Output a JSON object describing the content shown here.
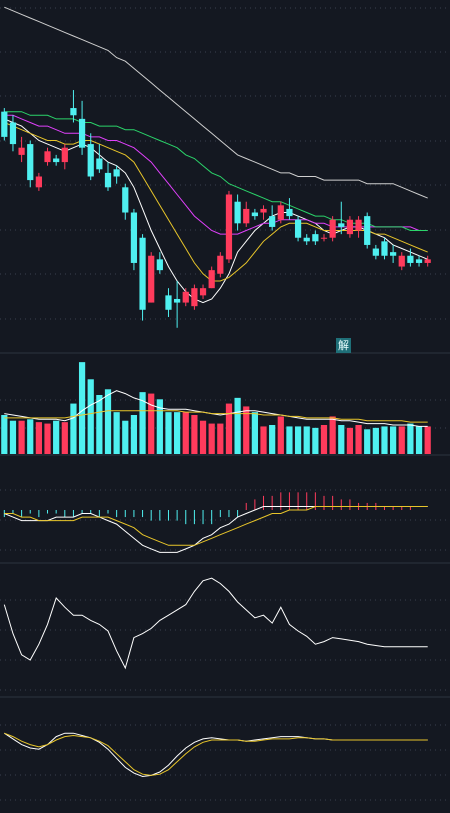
{
  "badge": {
    "label": "解"
  },
  "colors": {
    "background": "#141821",
    "up": "#ff3b5c",
    "down": "#4ff0f0",
    "grid": "#3a4150",
    "divider": "#2c3340",
    "ma_white": "#ffffff",
    "ma_yellow": "#e8c52a",
    "ma_magenta": "#e040fb",
    "ma_green": "#2bd46a",
    "ma_gray": "#cfcfcf"
  },
  "chart_data": {
    "type": "candlestick",
    "title": "",
    "panels": [
      {
        "name": "price",
        "candles": [
          {
            "o": 55,
            "h": 56,
            "l": 47,
            "c": 48
          },
          {
            "o": 52,
            "h": 54,
            "l": 44,
            "c": 46
          },
          {
            "o": 43,
            "h": 48,
            "l": 41,
            "c": 45
          },
          {
            "o": 46,
            "h": 47,
            "l": 34,
            "c": 36
          },
          {
            "o": 34,
            "h": 38,
            "l": 33,
            "c": 37
          },
          {
            "o": 41,
            "h": 45,
            "l": 40,
            "c": 44
          },
          {
            "o": 42,
            "h": 43,
            "l": 40,
            "c": 41
          },
          {
            "o": 41,
            "h": 46,
            "l": 39,
            "c": 45
          },
          {
            "o": 56,
            "h": 61,
            "l": 52,
            "c": 54
          },
          {
            "o": 53,
            "h": 58,
            "l": 43,
            "c": 45
          },
          {
            "o": 46,
            "h": 49,
            "l": 36,
            "c": 37
          },
          {
            "o": 42,
            "h": 46,
            "l": 38,
            "c": 39
          },
          {
            "o": 38,
            "h": 41,
            "l": 33,
            "c": 34
          },
          {
            "o": 39,
            "h": 40,
            "l": 35,
            "c": 37
          },
          {
            "o": 34,
            "h": 35,
            "l": 25,
            "c": 27
          },
          {
            "o": 27,
            "h": 28,
            "l": 11,
            "c": 13
          },
          {
            "o": 20,
            "h": 21,
            "l": -3,
            "c": 0
          },
          {
            "o": 2,
            "h": 16,
            "l": 2,
            "c": 15
          },
          {
            "o": 14,
            "h": 16,
            "l": 10,
            "c": 11
          },
          {
            "o": 4,
            "h": 6,
            "l": -2,
            "c": 0
          },
          {
            "o": 3,
            "h": 8,
            "l": -5,
            "c": 2
          },
          {
            "o": 2,
            "h": 6,
            "l": 1,
            "c": 5
          },
          {
            "o": 1,
            "h": 7,
            "l": 0,
            "c": 6
          },
          {
            "o": 4,
            "h": 7,
            "l": 3,
            "c": 6
          },
          {
            "o": 6,
            "h": 12,
            "l": 6,
            "c": 11
          },
          {
            "o": 10,
            "h": 16,
            "l": 9,
            "c": 15
          },
          {
            "o": 14,
            "h": 33,
            "l": 13,
            "c": 32
          },
          {
            "o": 30,
            "h": 32,
            "l": 22,
            "c": 24
          },
          {
            "o": 24,
            "h": 30,
            "l": 23,
            "c": 28
          },
          {
            "o": 27,
            "h": 28,
            "l": 25,
            "c": 26
          },
          {
            "o": 27,
            "h": 29,
            "l": 25,
            "c": 28
          },
          {
            "o": 26,
            "h": 29,
            "l": 22,
            "c": 23
          },
          {
            "o": 25,
            "h": 30,
            "l": 24,
            "c": 29
          },
          {
            "o": 28,
            "h": 31,
            "l": 25,
            "c": 26
          },
          {
            "o": 25,
            "h": 26,
            "l": 19,
            "c": 20
          },
          {
            "o": 20,
            "h": 21,
            "l": 18,
            "c": 19
          },
          {
            "o": 21,
            "h": 22,
            "l": 18,
            "c": 19
          },
          {
            "o": 20,
            "h": 21,
            "l": 19,
            "c": 20
          },
          {
            "o": 20,
            "h": 26,
            "l": 19,
            "c": 25
          },
          {
            "o": 24,
            "h": 30,
            "l": 21,
            "c": 23
          },
          {
            "o": 21,
            "h": 26,
            "l": 20,
            "c": 25
          },
          {
            "o": 22,
            "h": 26,
            "l": 20,
            "c": 25
          },
          {
            "o": 26,
            "h": 27,
            "l": 17,
            "c": 18
          },
          {
            "o": 17,
            "h": 18,
            "l": 14,
            "c": 15
          },
          {
            "o": 19,
            "h": 20,
            "l": 14,
            "c": 15
          },
          {
            "o": 16,
            "h": 18,
            "l": 13,
            "c": 15
          },
          {
            "o": 12,
            "h": 16,
            "l": 11,
            "c": 15
          },
          {
            "o": 15,
            "h": 17,
            "l": 12,
            "c": 13
          },
          {
            "o": 14,
            "h": 15,
            "l": 12,
            "c": 13
          },
          {
            "o": 13,
            "h": 15,
            "l": 12,
            "c": 14
          }
        ],
        "ylim": [
          -12,
          86
        ],
        "ma_lines": [
          {
            "color": "ma_white",
            "values": [
              53,
              52,
              51,
              49,
              47,
              46,
              45,
              44,
              45,
              46,
              45,
              43,
              41,
              40,
              38,
              34,
              28,
              22,
              17,
              12,
              8,
              5,
              3,
              2,
              3,
              6,
              10,
              16,
              19,
              22,
              24,
              26,
              27,
              27,
              26,
              25,
              24,
              22,
              21,
              22,
              23,
              23,
              22,
              21,
              20,
              18,
              17,
              16,
              15,
              14
            ]
          },
          {
            "color": "ma_yellow",
            "values": [
              52,
              51,
              50,
              49,
              48,
              47,
              47,
              46,
              46,
              47,
              47,
              46,
              45,
              44,
              43,
              41,
              37,
              33,
              29,
              25,
              21,
              17,
              13,
              10,
              8,
              8,
              9,
              11,
              13,
              16,
              19,
              21,
              23,
              24,
              24,
              24,
              23,
              22,
              22,
              22,
              22,
              22,
              22,
              21,
              21,
              20,
              19,
              18,
              17,
              16
            ]
          },
          {
            "color": "ma_magenta",
            "values": [
              54,
              54,
              53,
              52,
              51,
              51,
              50,
              49,
              49,
              49,
              48,
              48,
              47,
              47,
              46,
              45,
              43,
              41,
              38,
              35,
              32,
              29,
              26,
              24,
              22,
              21,
              21,
              21,
              22,
              23,
              24,
              24,
              25,
              25,
              25,
              25,
              24,
              24,
              23,
              23,
              23,
              23,
              23,
              23,
              23,
              23,
              23,
              23,
              22,
              22
            ]
          },
          {
            "color": "ma_green",
            "values": [
              55,
              55,
              55,
              54,
              54,
              54,
              53,
              53,
              53,
              52,
              52,
              51,
              51,
              51,
              50,
              50,
              49,
              48,
              47,
              46,
              45,
              43,
              42,
              40,
              38,
              37,
              35,
              34,
              33,
              32,
              31,
              30,
              30,
              29,
              28,
              27,
              26,
              26,
              25,
              25,
              24,
              24,
              24,
              23,
              23,
              23,
              23,
              22,
              22,
              22
            ]
          },
          {
            "color": "ma_gray",
            "values": [
              84,
              83,
              82,
              81,
              80,
              79,
              78,
              77,
              76,
              75,
              74,
              73,
              72,
              70,
              69,
              67,
              65,
              63,
              61,
              59,
              57,
              55,
              53,
              51,
              49,
              47,
              45,
              43,
              42,
              41,
              40,
              39,
              38,
              38,
              37,
              37,
              37,
              36,
              36,
              36,
              36,
              36,
              35,
              35,
              35,
              35,
              34,
              33,
              32,
              31
            ]
          }
        ]
      },
      {
        "name": "volume",
        "ylim": [
          0,
          70
        ],
        "values": [
          28,
          24,
          24,
          25,
          23,
          22,
          24,
          23,
          36,
          65,
          53,
          42,
          46,
          30,
          24,
          28,
          44,
          43,
          39,
          30,
          30,
          30,
          28,
          24,
          22,
          22,
          36,
          40,
          34,
          30,
          20,
          21,
          27,
          20,
          20,
          20,
          19,
          21,
          27,
          21,
          19,
          21,
          18,
          19,
          20,
          20,
          20,
          22,
          20,
          20
        ],
        "ma_lines": [
          {
            "color": "ma_white",
            "values": [
              29,
              28,
              27,
              26,
              25,
              25,
              25,
              24,
              26,
              31,
              35,
              38,
              42,
              45,
              43,
              40,
              38,
              35,
              33,
              32,
              32,
              32,
              31,
              30,
              29,
              28,
              29,
              30,
              31,
              31,
              30,
              29,
              28,
              27,
              26,
              25,
              25,
              25,
              25,
              24,
              24,
              23,
              22,
              22,
              22,
              21,
              21,
              21,
              20,
              20
            ]
          },
          {
            "color": "ma_yellow",
            "values": [
              26,
              26,
              26,
              26,
              26,
              26,
              26,
              26,
              27,
              28,
              29,
              30,
              31,
              31,
              31,
              31,
              31,
              31,
              31,
              31,
              31,
              30,
              30,
              30,
              29,
              29,
              29,
              29,
              29,
              29,
              28,
              28,
              28,
              27,
              27,
              26,
              26,
              26,
              26,
              25,
              25,
              25,
              24,
              24,
              24,
              24,
              24,
              23,
              23,
              23
            ]
          }
        ]
      },
      {
        "name": "macd",
        "ylim": [
          -15,
          15
        ],
        "hist": [
          -2,
          -1,
          -2,
          -1,
          -2,
          -1,
          -1,
          -2,
          -2,
          -1,
          -1,
          -2,
          -1,
          -2,
          -2,
          -2,
          -2,
          -3,
          -3,
          -3,
          -3,
          -4,
          -4,
          -4,
          -4,
          -2,
          -2,
          -2,
          2,
          3,
          4,
          4,
          5,
          5,
          5,
          5,
          5,
          4,
          4,
          3,
          3,
          2,
          2,
          2,
          1,
          1,
          1,
          1,
          0,
          0
        ],
        "dif": [
          -1,
          -2,
          -3,
          -3,
          -3,
          -3,
          -2,
          -2,
          -2,
          -1,
          -1,
          -2,
          -3,
          -4,
          -6,
          -8,
          -10,
          -11,
          -12,
          -12,
          -12,
          -11,
          -10,
          -8,
          -7,
          -5,
          -4,
          -2,
          -1,
          0,
          1,
          1,
          1,
          1,
          1,
          1,
          1,
          1,
          1,
          1,
          1,
          1,
          1,
          1,
          1,
          1,
          1,
          1,
          1,
          1
        ],
        "dea": [
          -1,
          -1,
          -2,
          -2,
          -3,
          -3,
          -3,
          -3,
          -3,
          -2,
          -2,
          -2,
          -2,
          -3,
          -4,
          -5,
          -7,
          -8,
          -9,
          -10,
          -10,
          -10,
          -10,
          -9,
          -8,
          -7,
          -6,
          -5,
          -4,
          -3,
          -2,
          -1,
          -1,
          0,
          0,
          0,
          1,
          1,
          1,
          1,
          1,
          1,
          1,
          1,
          1,
          1,
          1,
          1,
          1,
          1
        ]
      },
      {
        "name": "oscillator",
        "ylim": [
          0,
          100
        ],
        "values": [
          70,
          48,
          32,
          28,
          40,
          55,
          75,
          68,
          62,
          62,
          58,
          55,
          50,
          35,
          22,
          45,
          48,
          52,
          58,
          62,
          66,
          70,
          80,
          88,
          90,
          86,
          80,
          72,
          66,
          60,
          62,
          56,
          68,
          55,
          50,
          46,
          40,
          42,
          45,
          44,
          43,
          42,
          40,
          39,
          38,
          38,
          38,
          38,
          38,
          38
        ]
      },
      {
        "name": "kd",
        "ylim": [
          0,
          100
        ],
        "k": [
          70,
          65,
          60,
          57,
          56,
          60,
          67,
          70,
          70,
          68,
          66,
          62,
          56,
          48,
          40,
          35,
          32,
          33,
          36,
          42,
          50,
          57,
          62,
          65,
          66,
          65,
          64,
          64,
          63,
          64,
          65,
          66,
          67,
          67,
          67,
          66,
          65,
          65,
          64,
          64,
          64,
          64,
          64,
          64,
          64,
          64,
          64,
          64,
          64,
          64
        ],
        "d": [
          70,
          67,
          63,
          60,
          58,
          60,
          64,
          67,
          68,
          67,
          66,
          63,
          59,
          52,
          45,
          38,
          34,
          33,
          34,
          38,
          45,
          52,
          58,
          62,
          64,
          64,
          64,
          64,
          63,
          63,
          64,
          65,
          65,
          65,
          66,
          66,
          65,
          65,
          64,
          64,
          64,
          64,
          64,
          64,
          64,
          64,
          64,
          64,
          64,
          64
        ]
      }
    ]
  }
}
